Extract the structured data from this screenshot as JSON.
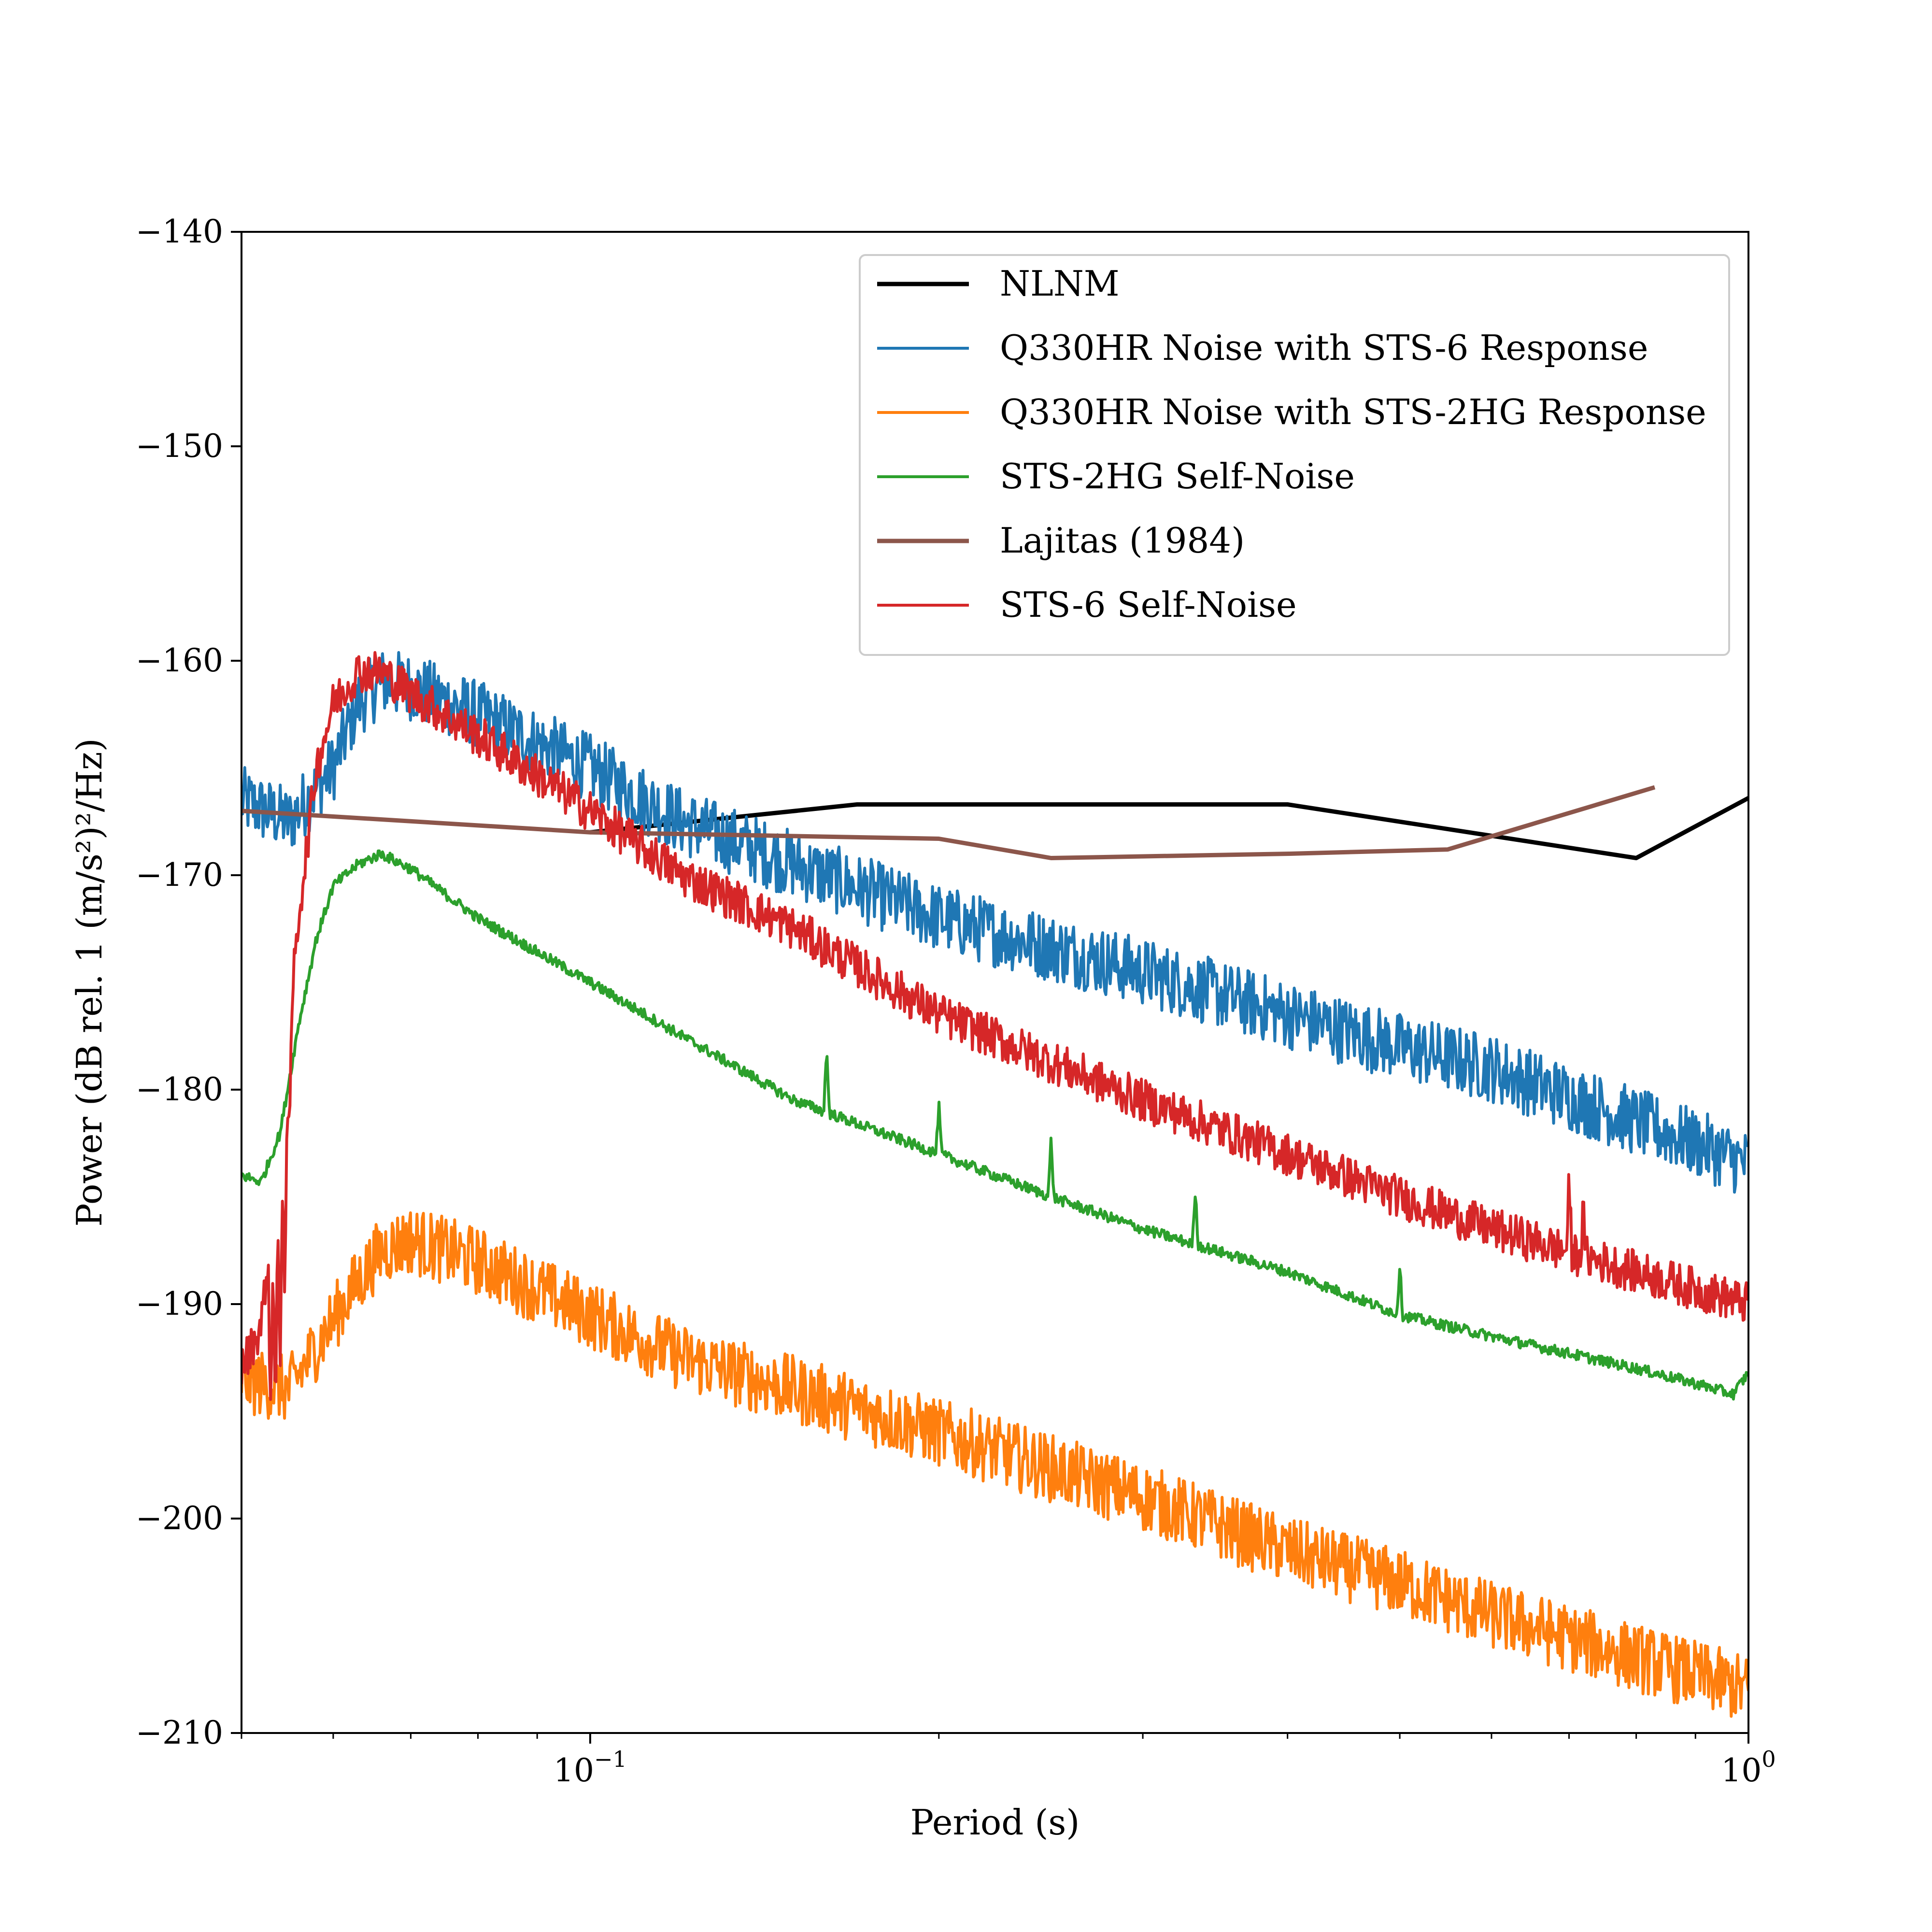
{
  "chart_data": {
    "type": "line",
    "xlabel": "Period (s)",
    "ylabel": "Power (dB rel. 1 (m/s²)²/Hz)",
    "xscale": "log",
    "xlim": [
      0.05,
      1.0
    ],
    "ylim": [
      -210,
      -140
    ],
    "x_ticks": [
      {
        "value": 0.1,
        "base": "10",
        "exp": "−1"
      },
      {
        "value": 1.0,
        "base": "10",
        "exp": "0"
      }
    ],
    "y_ticks": [
      -140,
      -150,
      -160,
      -170,
      -180,
      -190,
      -200,
      -210
    ],
    "y_tick_labels": [
      "−140",
      "−150",
      "−160",
      "−170",
      "−180",
      "−190",
      "−200",
      "−210"
    ],
    "grid": false,
    "legend_position": "top-right",
    "series": [
      {
        "name": "NLNM",
        "color": "#000000",
        "width": 9,
        "noise": 0,
        "x": [
          0.1,
          0.17,
          0.4,
          0.8,
          1.0
        ],
        "y": [
          -168.0,
          -166.7,
          -166.7,
          -169.2,
          -166.4
        ]
      },
      {
        "name": "Q330HR Noise with STS-6 Response",
        "color": "#1f77b4",
        "width": 6,
        "noise": 1.6,
        "x": [
          0.05,
          0.055,
          0.06,
          0.063,
          0.066,
          0.07,
          0.08,
          0.1,
          0.12,
          0.15,
          0.2,
          0.3,
          0.4,
          0.5,
          0.6,
          0.8,
          0.9,
          1.0
        ],
        "y": [
          -166.5,
          -167.5,
          -165.0,
          -162.0,
          -161.0,
          -161.2,
          -162.5,
          -165.0,
          -167.5,
          -169.5,
          -172.0,
          -174.5,
          -176.5,
          -178.0,
          -179.0,
          -181.5,
          -182.5,
          -183.5
        ]
      },
      {
        "name": "Q330HR Noise with STS-2HG Response",
        "color": "#ff7f0e",
        "width": 6,
        "noise": 1.6,
        "x": [
          0.05,
          0.055,
          0.058,
          0.062,
          0.066,
          0.07,
          0.08,
          0.1,
          0.12,
          0.15,
          0.2,
          0.3,
          0.4,
          0.5,
          0.6,
          0.8,
          1.0
        ],
        "y": [
          -193.5,
          -194.0,
          -192.0,
          -189.5,
          -187.5,
          -187.0,
          -188.0,
          -190.5,
          -192.5,
          -194.0,
          -196.0,
          -199.0,
          -201.5,
          -203.0,
          -204.5,
          -206.5,
          -208.0
        ]
      },
      {
        "name": "STS-2HG Self-Noise",
        "color": "#2ca02c",
        "width": 6,
        "noise": 0.25,
        "spikes": [
          [
            0.16,
            3.0
          ],
          [
            0.2,
            2.3
          ],
          [
            0.25,
            2.7
          ],
          [
            0.333,
            2.5
          ],
          [
            0.5,
            2.3
          ]
        ],
        "x": [
          0.05,
          0.052,
          0.054,
          0.056,
          0.058,
          0.06,
          0.063,
          0.066,
          0.07,
          0.08,
          0.1,
          0.12,
          0.15,
          0.2,
          0.25,
          0.3,
          0.4,
          0.5,
          0.6,
          0.8,
          0.9,
          0.97,
          1.0
        ],
        "y": [
          -184.0,
          -184.3,
          -182.0,
          -177.0,
          -173.0,
          -170.5,
          -169.5,
          -169.0,
          -169.7,
          -172.0,
          -175.0,
          -177.5,
          -180.5,
          -183.0,
          -185.0,
          -186.5,
          -188.5,
          -190.5,
          -191.5,
          -193.0,
          -193.7,
          -194.2,
          -193.2
        ]
      },
      {
        "name": "Lajitas (1984)",
        "color": "#8c564b",
        "width": 9,
        "noise": 0,
        "x": [
          0.05,
          0.1,
          0.2,
          0.25,
          0.4,
          0.55,
          0.83
        ],
        "y": [
          -167.0,
          -168.0,
          -168.3,
          -169.2,
          -169.0,
          -168.8,
          -165.9
        ]
      },
      {
        "name": "STS-6 Self-Noise",
        "color": "#d62728",
        "width": 6,
        "noise": 1.0,
        "spikes": [
          [
            0.053,
            -9
          ],
          [
            0.0535,
            -11
          ],
          [
            0.054,
            -12
          ],
          [
            0.0545,
            -10
          ],
          [
            0.055,
            -6
          ],
          [
            0.7,
            3.0
          ],
          [
            0.72,
            2.0
          ]
        ],
        "x": [
          0.05,
          0.052,
          0.054,
          0.056,
          0.058,
          0.06,
          0.063,
          0.066,
          0.07,
          0.08,
          0.1,
          0.12,
          0.15,
          0.2,
          0.3,
          0.4,
          0.5,
          0.6,
          0.8,
          1.0
        ],
        "y": [
          -193.0,
          -191.0,
          -182.0,
          -172.0,
          -165.0,
          -162.0,
          -160.5,
          -160.5,
          -161.5,
          -163.5,
          -167.0,
          -170.0,
          -172.5,
          -176.5,
          -180.5,
          -183.0,
          -185.0,
          -186.5,
          -188.5,
          -190.0
        ]
      }
    ]
  }
}
